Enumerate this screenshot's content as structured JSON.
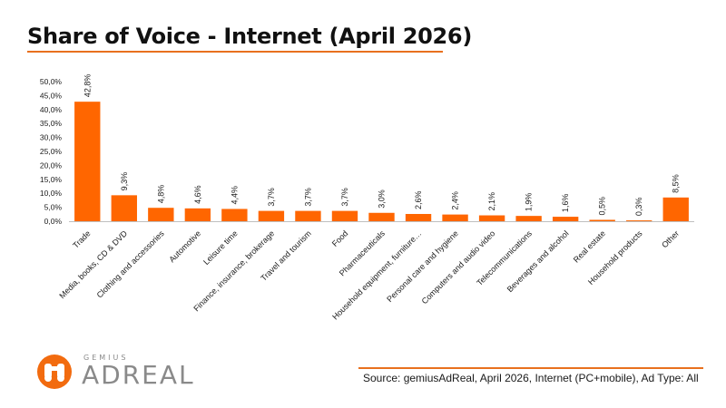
{
  "title": "Share of Voice - Internet (April 2026)",
  "source": "Source: gemiusAdReal, April 2026, Internet (PC+mobile), Ad Type: All",
  "logo": {
    "brand_small": "GEMIUS",
    "brand_big": "ADREAL"
  },
  "colors": {
    "accent": "#f26b0f",
    "bar": "#ff6600",
    "text": "#1a1a1a"
  },
  "chart_data": {
    "type": "bar",
    "categories": [
      "Trade",
      "Media, books, CD & DVD",
      "Clothing and accessories",
      "Automotive",
      "Leisure time",
      "Finance, insurance, brokerage",
      "Travel and tourism",
      "Food",
      "Pharmaceuticals",
      "Household equipment, furniture…",
      "Personal care and hygiene",
      "Computers and audio video",
      "Telecommunications",
      "Beverages and alcohol",
      "Real estate",
      "Household products",
      "Other"
    ],
    "values": [
      42.8,
      9.3,
      4.8,
      4.6,
      4.4,
      3.7,
      3.7,
      3.7,
      3.0,
      2.6,
      2.4,
      2.1,
      1.9,
      1.6,
      0.5,
      0.3,
      8.5
    ],
    "value_labels": [
      "42,8%",
      "9,3%",
      "4,8%",
      "4,6%",
      "4,4%",
      "3,7%",
      "3,7%",
      "3,7%",
      "3,0%",
      "2,6%",
      "2,4%",
      "2,1%",
      "1,9%",
      "1,6%",
      "0,5%",
      "0,3%",
      "8,5%"
    ],
    "yticks": [
      "0,0%",
      "5,0%",
      "10,0%",
      "15,0%",
      "20,0%",
      "25,0%",
      "30,0%",
      "35,0%",
      "40,0%",
      "45,0%",
      "50,0%"
    ],
    "ylim": [
      0,
      50
    ],
    "grid": false,
    "legend": "none",
    "xlabel": "",
    "ylabel": ""
  }
}
